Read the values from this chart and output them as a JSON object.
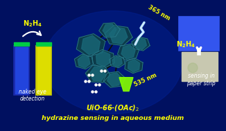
{
  "bg_color": "#001060",
  "title_text": "hydrazine sensing in aqueous medium",
  "title_color": "#FFFF00",
  "subtitle_text": "UiO-66-(OAc)₂",
  "subtitle_color": "#FFFF00",
  "label_naked_eye": "naked eye\ndetection",
  "label_paper_strip": "sensing in\npaper strip",
  "label_color": "#FFFFFF",
  "n2h4_color": "#FFFF00",
  "nm365_color": "#FFFF00",
  "nm535_color": "#FFFF00",
  "lightning_color": "#88ccff",
  "mof_node_fill": "#0d3d4a",
  "mof_node_edge": "#2a7a8a",
  "mof_node_inner": "#1a6a7a",
  "cuvette1_body": "#1a2aaa",
  "cuvette1_inner": "#2244dd",
  "cuvette2_body": "#cccc00",
  "cuvette2_inner": "#dddd00",
  "cap_color": "#00cc44",
  "blue_square": "#3355ee",
  "paper_color": "#c8c8b0",
  "cone_color": "#88ff00"
}
